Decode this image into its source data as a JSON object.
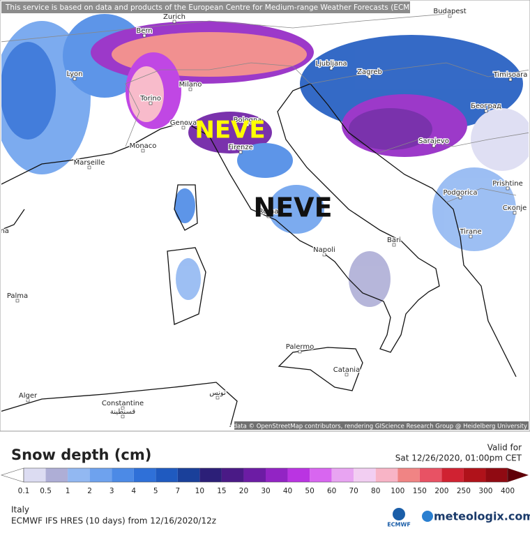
{
  "header": {
    "notice": "This service is based on data and products of the European Centre for Medium-range Weather Forecasts (ECMWF)"
  },
  "annotations": [
    "NEVE",
    "NEVE"
  ],
  "cities": [
    "Budapest",
    "Zurich",
    "Bern",
    "Lyon",
    "Milano",
    "Torino",
    "Genova",
    "Monaco",
    "Marseille",
    "Bologna",
    "Firenze",
    "Ljubljana",
    "Zagreb",
    "Timisoara",
    "Београд",
    "Sarajevo",
    "Podgorica",
    "Prishtine",
    "Скопје",
    "Tirane",
    "Roma",
    "Napoli",
    "Bari",
    "Palermo",
    "Catania",
    "Palma",
    "Barcelona",
    "Alger",
    "Constantine",
    "قسنطينة",
    "تونس"
  ],
  "attribution": "Map data © OpenStreetMap contributors, rendering GIScience Research Group @ Heidelberg University",
  "legend": {
    "title": "Snow depth (cm)",
    "ticks": [
      0.1,
      0.5,
      1,
      2,
      3,
      4,
      5,
      7,
      10,
      15,
      20,
      30,
      40,
      50,
      60,
      70,
      80,
      100,
      150,
      200,
      250,
      300,
      400
    ],
    "colors": [
      "#dcdcf2",
      "#aeaed6",
      "#92b8f2",
      "#6ea2ee",
      "#4c8ae6",
      "#2f70d8",
      "#1f5ac0",
      "#1a409a",
      "#2c1f78",
      "#4a1a86",
      "#6c1ca4",
      "#9224c4",
      "#ba34e2",
      "#d866f0",
      "#e8a4f2",
      "#f2cef2",
      "#f8b4c6",
      "#f08484",
      "#e85264",
      "#d02232",
      "#b0121a",
      "#900a12"
    ],
    "under_color": "#ffffff",
    "over_color": "#600008"
  },
  "valid": {
    "label": "Valid for",
    "time": "Sat 12/26/2020, 01:00pm CET"
  },
  "footer": {
    "region": "Italy",
    "model": "ECMWF IFS HRES (10 days) from 12/16/2020/12z"
  },
  "logos": {
    "ecmwf": "ECMWF",
    "meteologix": "meteologix.com"
  }
}
